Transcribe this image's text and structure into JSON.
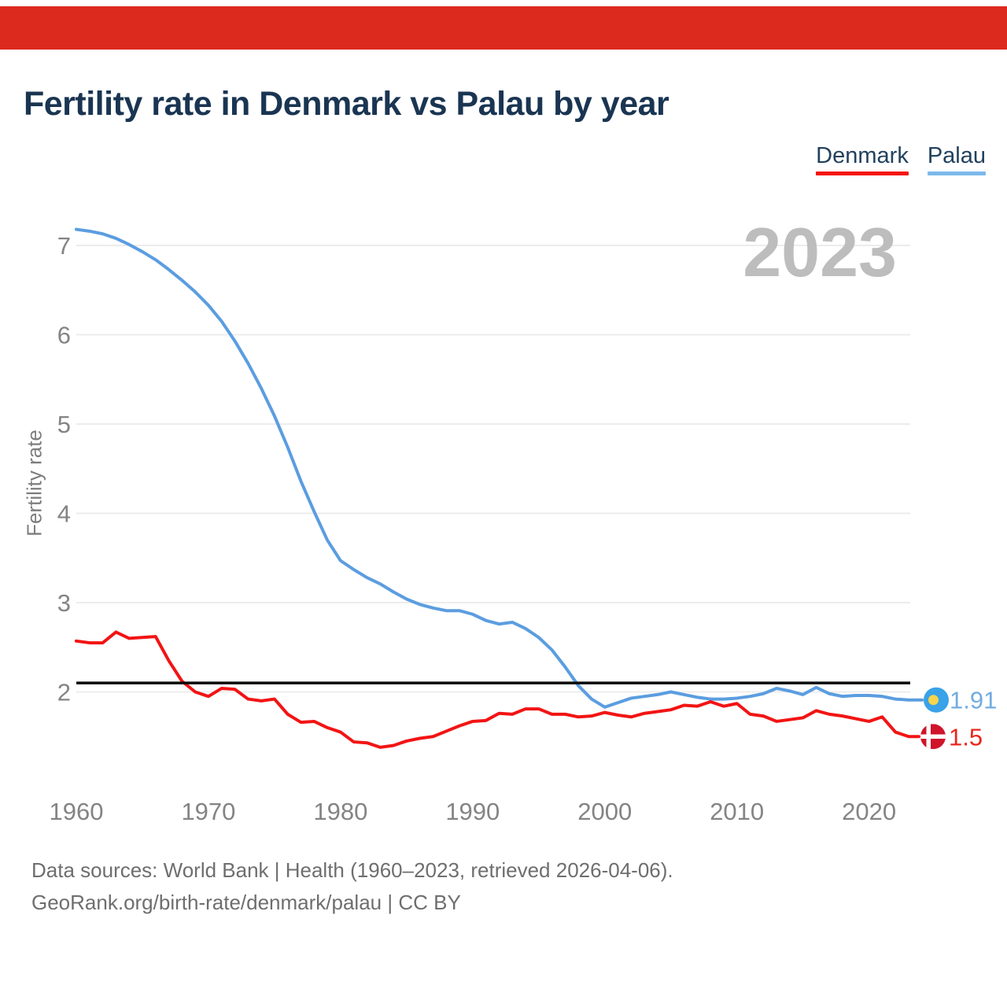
{
  "page": {
    "banner_color": "#dd2a1e",
    "title": "Fertility rate in Denmark vs Palau by year",
    "watermark": "2023",
    "footer_line1": "Data sources: World Bank | Health (1960–2023, retrieved 2026-04-06).",
    "footer_line2": "GeoRank.org/birth-rate/denmark/palau | CC BY"
  },
  "legend": {
    "items": [
      {
        "label": "Denmark",
        "color": "#f51111"
      },
      {
        "label": "Palau",
        "color": "#7cb9ec"
      }
    ]
  },
  "chart_data": {
    "type": "line",
    "title": "Fertility rate in Denmark vs Palau by year",
    "xlabel": "",
    "ylabel": "Fertility rate",
    "grid": true,
    "legend_position": "top-right",
    "ylim": [
      1.2,
      7.35
    ],
    "y_ticks": [
      2,
      3,
      4,
      5,
      6,
      7
    ],
    "x_ticks": [
      1960,
      1970,
      1980,
      1990,
      2000,
      2010,
      2020
    ],
    "reference_line_value": 2.1,
    "x": [
      1960,
      1961,
      1962,
      1963,
      1964,
      1965,
      1966,
      1967,
      1968,
      1969,
      1970,
      1971,
      1972,
      1973,
      1974,
      1975,
      1976,
      1977,
      1978,
      1979,
      1980,
      1981,
      1982,
      1983,
      1984,
      1985,
      1986,
      1987,
      1988,
      1989,
      1990,
      1991,
      1992,
      1993,
      1994,
      1995,
      1996,
      1997,
      1998,
      1999,
      2000,
      2001,
      2002,
      2003,
      2004,
      2005,
      2006,
      2007,
      2008,
      2009,
      2010,
      2011,
      2012,
      2013,
      2014,
      2015,
      2016,
      2017,
      2018,
      2019,
      2020,
      2021,
      2022,
      2023
    ],
    "series": [
      {
        "name": "Palau",
        "color": "#5b9de0",
        "end_label": "1.91",
        "end_label_color": "#72ace0",
        "flag": "palau-flag-icon",
        "values": [
          7.18,
          7.16,
          7.13,
          7.08,
          7.01,
          6.93,
          6.84,
          6.73,
          6.61,
          6.48,
          6.33,
          6.15,
          5.93,
          5.68,
          5.4,
          5.09,
          4.74,
          4.36,
          4.02,
          3.7,
          3.47,
          3.37,
          3.28,
          3.21,
          3.12,
          3.04,
          2.98,
          2.94,
          2.91,
          2.91,
          2.87,
          2.8,
          2.76,
          2.78,
          2.71,
          2.61,
          2.47,
          2.28,
          2.07,
          1.92,
          1.83,
          1.88,
          1.93,
          1.95,
          1.97,
          2.0,
          1.97,
          1.94,
          1.92,
          1.92,
          1.93,
          1.95,
          1.98,
          2.04,
          2.01,
          1.97,
          2.05,
          1.98,
          1.95,
          1.96,
          1.96,
          1.95,
          1.92,
          1.91
        ]
      },
      {
        "name": "Denmark",
        "color": "#f21414",
        "end_label": "1.5",
        "end_label_color": "#e8271c",
        "flag": "denmark-flag-icon",
        "values": [
          2.57,
          2.55,
          2.55,
          2.67,
          2.6,
          2.61,
          2.62,
          2.35,
          2.12,
          2.0,
          1.95,
          2.04,
          2.03,
          1.92,
          1.9,
          1.92,
          1.75,
          1.66,
          1.67,
          1.6,
          1.55,
          1.44,
          1.43,
          1.38,
          1.4,
          1.45,
          1.48,
          1.5,
          1.56,
          1.62,
          1.67,
          1.68,
          1.76,
          1.75,
          1.81,
          1.81,
          1.75,
          1.75,
          1.72,
          1.73,
          1.77,
          1.74,
          1.72,
          1.76,
          1.78,
          1.8,
          1.85,
          1.84,
          1.89,
          1.84,
          1.87,
          1.75,
          1.73,
          1.67,
          1.69,
          1.71,
          1.79,
          1.75,
          1.73,
          1.7,
          1.67,
          1.72,
          1.55,
          1.5
        ]
      }
    ],
    "flag_colors": {
      "palau_blue": "#3aa2e8",
      "palau_yellow": "#f8d44c",
      "denmark_red": "#cf142b",
      "cross_white": "#ffffff"
    }
  }
}
